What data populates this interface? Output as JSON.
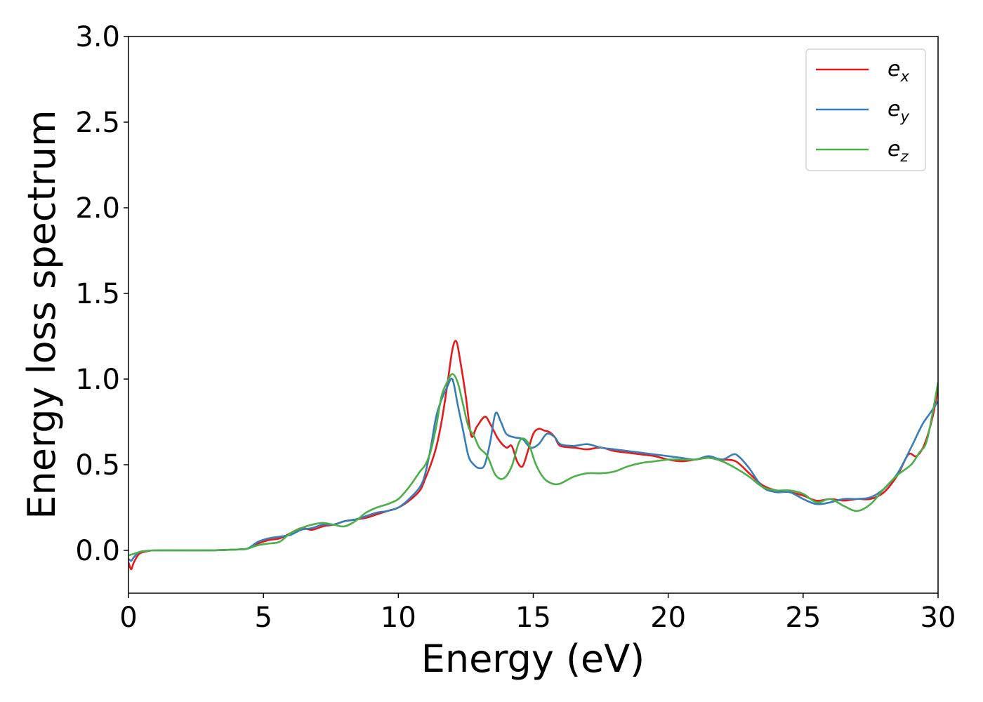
{
  "chart_data": {
    "type": "line",
    "title": "",
    "xlabel": "Energy (eV)",
    "ylabel": "Energy loss spectrum",
    "xlim": [
      0,
      30
    ],
    "ylim": [
      -0.25,
      3.0
    ],
    "xticks": [
      "0",
      "5",
      "10",
      "15",
      "20",
      "25",
      "30"
    ],
    "yticks": [
      "0.0",
      "0.5",
      "1.0",
      "1.5",
      "2.0",
      "2.5",
      "3.0"
    ],
    "grid": false,
    "legend_position": "top-right",
    "series": [
      {
        "name": "e_x",
        "label_base": "e",
        "label_sub": "x",
        "color": "#e41a1c",
        "x": [
          0.0,
          0.1,
          0.2,
          0.4,
          0.7,
          1.0,
          2.0,
          3.0,
          4.0,
          4.4,
          4.8,
          5.2,
          5.6,
          6.0,
          6.4,
          6.8,
          7.2,
          7.6,
          8.0,
          8.4,
          8.8,
          9.2,
          9.6,
          10.0,
          10.4,
          10.8,
          11.0,
          11.2,
          11.4,
          11.6,
          11.8,
          12.0,
          12.15,
          12.3,
          12.5,
          12.7,
          12.9,
          13.2,
          13.4,
          13.7,
          14.0,
          14.2,
          14.4,
          14.6,
          14.8,
          15.0,
          15.2,
          15.4,
          15.6,
          15.8,
          16.0,
          16.5,
          17.0,
          17.5,
          18.0,
          18.5,
          19.0,
          19.5,
          20.0,
          20.5,
          21.0,
          21.5,
          22.0,
          22.5,
          23.0,
          23.5,
          24.0,
          24.5,
          25.0,
          25.5,
          26.0,
          26.5,
          27.0,
          27.5,
          28.0,
          28.5,
          28.9,
          29.2,
          29.5,
          29.8,
          30.0
        ],
        "y": [
          -0.07,
          -0.11,
          -0.07,
          -0.02,
          -0.005,
          0.0,
          0.0,
          0.0,
          0.005,
          0.01,
          0.04,
          0.06,
          0.07,
          0.1,
          0.13,
          0.12,
          0.14,
          0.15,
          0.17,
          0.18,
          0.19,
          0.21,
          0.23,
          0.25,
          0.29,
          0.35,
          0.42,
          0.5,
          0.6,
          0.75,
          0.95,
          1.17,
          1.22,
          1.1,
          0.9,
          0.67,
          0.72,
          0.78,
          0.74,
          0.65,
          0.6,
          0.61,
          0.52,
          0.49,
          0.58,
          0.68,
          0.71,
          0.7,
          0.69,
          0.66,
          0.61,
          0.6,
          0.59,
          0.6,
          0.58,
          0.57,
          0.56,
          0.55,
          0.53,
          0.52,
          0.53,
          0.54,
          0.53,
          0.52,
          0.45,
          0.38,
          0.35,
          0.34,
          0.32,
          0.29,
          0.3,
          0.29,
          0.3,
          0.3,
          0.34,
          0.44,
          0.56,
          0.55,
          0.62,
          0.78,
          0.95
        ]
      },
      {
        "name": "e_y",
        "label_base": "e",
        "label_sub": "y",
        "color": "#377eb8",
        "x": [
          0.0,
          0.1,
          0.2,
          0.4,
          0.7,
          1.0,
          2.0,
          3.0,
          4.0,
          4.4,
          4.8,
          5.2,
          5.6,
          6.0,
          6.4,
          6.8,
          7.2,
          7.6,
          8.0,
          8.4,
          8.8,
          9.2,
          9.6,
          10.0,
          10.4,
          10.8,
          11.0,
          11.2,
          11.4,
          11.6,
          11.8,
          12.0,
          12.2,
          12.4,
          12.6,
          12.8,
          13.0,
          13.2,
          13.4,
          13.6,
          13.8,
          14.0,
          14.3,
          14.6,
          14.9,
          15.2,
          15.5,
          15.8,
          16.0,
          16.5,
          17.0,
          17.5,
          18.0,
          18.5,
          19.0,
          19.5,
          20.0,
          20.5,
          21.0,
          21.5,
          22.0,
          22.4,
          22.6,
          23.0,
          23.5,
          24.0,
          24.5,
          25.0,
          25.5,
          26.0,
          26.5,
          27.0,
          27.5,
          28.0,
          28.5,
          29.0,
          29.4,
          29.7,
          30.0
        ],
        "y": [
          -0.05,
          -0.06,
          -0.04,
          -0.01,
          -0.003,
          0.0,
          0.0,
          0.0,
          0.005,
          0.01,
          0.05,
          0.07,
          0.08,
          0.09,
          0.12,
          0.13,
          0.15,
          0.15,
          0.17,
          0.18,
          0.2,
          0.22,
          0.23,
          0.25,
          0.3,
          0.37,
          0.45,
          0.6,
          0.78,
          0.88,
          0.95,
          1.0,
          0.85,
          0.7,
          0.55,
          0.5,
          0.48,
          0.5,
          0.63,
          0.8,
          0.75,
          0.68,
          0.66,
          0.65,
          0.6,
          0.62,
          0.68,
          0.66,
          0.62,
          0.61,
          0.62,
          0.6,
          0.59,
          0.58,
          0.57,
          0.56,
          0.55,
          0.54,
          0.53,
          0.55,
          0.53,
          0.56,
          0.55,
          0.48,
          0.37,
          0.34,
          0.34,
          0.3,
          0.27,
          0.28,
          0.3,
          0.3,
          0.31,
          0.36,
          0.45,
          0.6,
          0.73,
          0.8,
          0.87
        ]
      },
      {
        "name": "e_z",
        "label_base": "e",
        "label_sub": "z",
        "color": "#4daf4a",
        "x": [
          0.0,
          0.2,
          0.4,
          0.7,
          1.0,
          2.0,
          3.0,
          4.0,
          4.4,
          4.8,
          5.2,
          5.6,
          6.0,
          6.4,
          6.8,
          7.2,
          7.6,
          8.0,
          8.4,
          8.8,
          9.2,
          9.6,
          10.0,
          10.4,
          10.8,
          11.0,
          11.2,
          11.4,
          11.6,
          11.8,
          12.0,
          12.2,
          12.4,
          12.6,
          12.8,
          13.0,
          13.3,
          13.6,
          13.9,
          14.2,
          14.5,
          14.8,
          15.1,
          15.4,
          15.7,
          16.0,
          16.5,
          17.0,
          17.5,
          18.0,
          18.5,
          19.0,
          19.5,
          20.0,
          20.5,
          21.0,
          21.5,
          22.0,
          22.5,
          23.0,
          23.5,
          24.0,
          24.5,
          25.0,
          25.5,
          26.0,
          26.5,
          27.0,
          27.5,
          28.0,
          28.5,
          29.0,
          29.3,
          29.6,
          30.0
        ],
        "y": [
          -0.03,
          -0.02,
          -0.01,
          -0.003,
          0.0,
          0.0,
          0.0,
          0.005,
          0.01,
          0.03,
          0.04,
          0.05,
          0.1,
          0.13,
          0.15,
          0.16,
          0.15,
          0.14,
          0.17,
          0.22,
          0.25,
          0.27,
          0.3,
          0.37,
          0.46,
          0.5,
          0.58,
          0.72,
          0.9,
          0.98,
          1.03,
          0.98,
          0.85,
          0.72,
          0.67,
          0.6,
          0.55,
          0.44,
          0.42,
          0.49,
          0.64,
          0.63,
          0.5,
          0.42,
          0.39,
          0.39,
          0.43,
          0.45,
          0.45,
          0.46,
          0.49,
          0.51,
          0.52,
          0.53,
          0.53,
          0.53,
          0.54,
          0.52,
          0.48,
          0.43,
          0.37,
          0.35,
          0.35,
          0.33,
          0.28,
          0.3,
          0.26,
          0.23,
          0.27,
          0.36,
          0.44,
          0.5,
          0.57,
          0.65,
          0.98
        ]
      }
    ]
  }
}
